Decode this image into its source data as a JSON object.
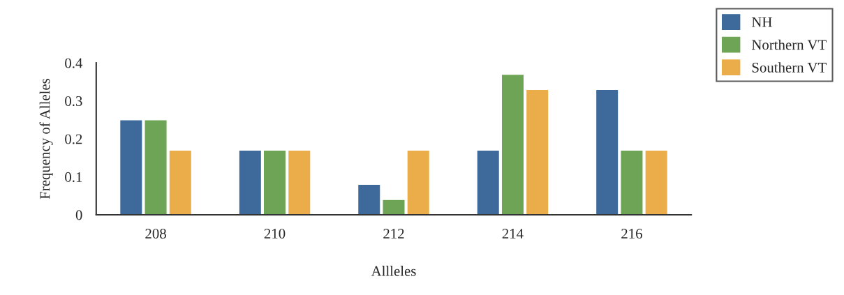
{
  "chart_data": {
    "type": "bar",
    "xlabel": "Allleles",
    "ylabel": "Frequency of Alleles",
    "categories": [
      "208",
      "210",
      "212",
      "214",
      "216"
    ],
    "series": [
      {
        "name": "NH",
        "color": "#3d6a9b",
        "values": [
          0.25,
          0.17,
          0.08,
          0.17,
          0.33
        ]
      },
      {
        "name": "Northern VT",
        "color": "#6ea456",
        "values": [
          0.25,
          0.17,
          0.04,
          0.37,
          0.17
        ]
      },
      {
        "name": "Southern VT",
        "color": "#ebad4a",
        "values": [
          0.17,
          0.17,
          0.17,
          0.33,
          0.17
        ]
      }
    ],
    "ylim": [
      0,
      0.4
    ],
    "yticks": [
      {
        "value": 0,
        "label": "0"
      },
      0.1,
      0.2,
      0.3,
      0.4
    ],
    "legend": "top right",
    "grid": false
  }
}
